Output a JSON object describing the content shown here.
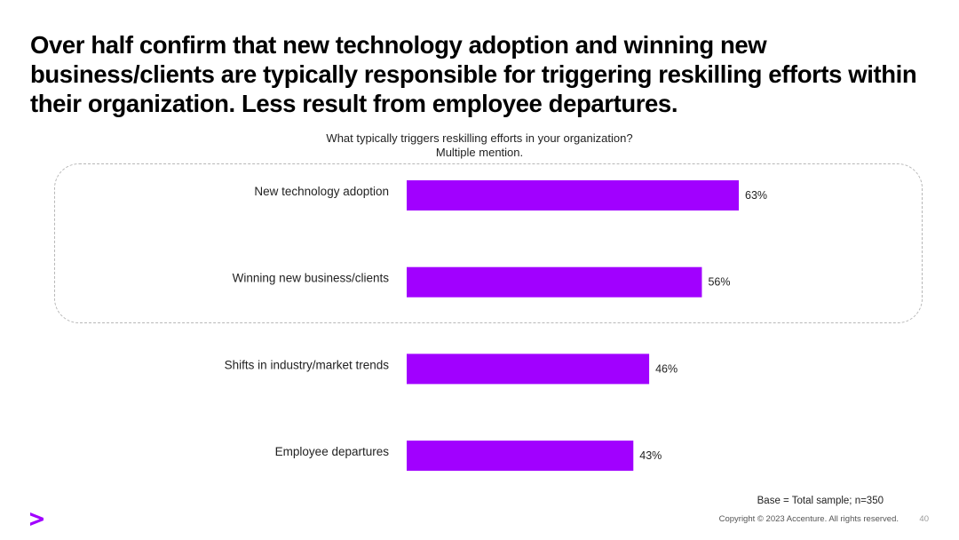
{
  "slide": {
    "title": "Over half confirm that new technology adoption and winning new business/clients are typically responsible for triggering reskilling efforts within their organization. Less result from employee departures.",
    "question": "What typically triggers reskilling efforts in your organization?",
    "note": "Multiple mention.",
    "base": "Base = Total sample; n=350",
    "copyright": "Copyright © 2023 Accenture. All rights reserved.",
    "page_number": "40"
  },
  "colors": {
    "accent": "#a100ff",
    "highlight_border": "#b8b8b8"
  },
  "chart_data": {
    "type": "bar",
    "orientation": "horizontal",
    "categories": [
      "New technology adoption",
      "Winning new business/clients",
      "Shifts in industry/market trends",
      "Employee departures"
    ],
    "values": [
      63,
      56,
      46,
      43
    ],
    "value_labels": [
      "63%",
      "56%",
      "46%",
      "43%"
    ],
    "unit": "%",
    "xlim": [
      0,
      100
    ],
    "highlighted_categories": [
      "New technology adoption",
      "Winning new business/clients"
    ],
    "title": "What typically triggers reskilling efforts in your organization?",
    "subtitle": "Multiple mention.",
    "grid": false
  }
}
